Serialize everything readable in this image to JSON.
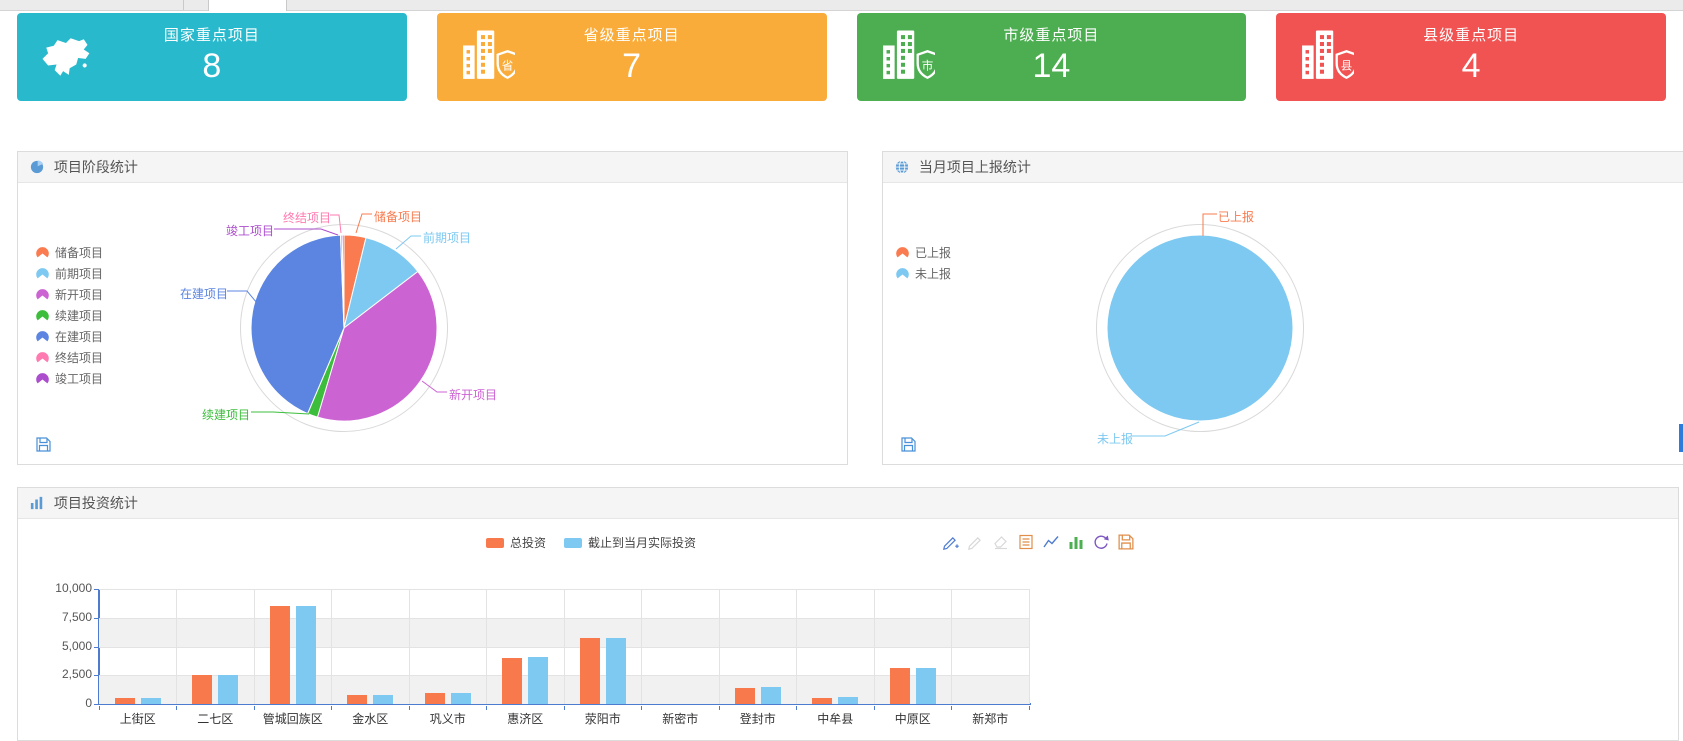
{
  "stat_cards": [
    {
      "label": "国家重点项目",
      "value": "8",
      "color": "#28B9CC",
      "icon": "china-map-icon",
      "badge": ""
    },
    {
      "label": "省级重点项目",
      "value": "7",
      "color": "#F9AC3A",
      "icon": "building-shield-icon",
      "badge": "省"
    },
    {
      "label": "市级重点项目",
      "value": "14",
      "color": "#4DAE51",
      "icon": "building-shield-icon",
      "badge": "市"
    },
    {
      "label": "县级重点项目",
      "value": "4",
      "color": "#F05352",
      "icon": "building-shield-icon",
      "badge": "县"
    }
  ],
  "panels": [
    {
      "title": "项目阶段统计",
      "icon": "pie-chart-icon"
    },
    {
      "title": "当月项目上报统计",
      "icon": "globe-icon"
    },
    {
      "title": "项目投资统计",
      "icon": "bar-chart-icon"
    }
  ],
  "toolbox": [
    {
      "name": "brush-icon",
      "color": "#4F7CD1"
    },
    {
      "name": "brush-disabled-icon",
      "color": "#D8D8D8"
    },
    {
      "name": "brush-clear-icon",
      "color": "#D8D8D8"
    },
    {
      "name": "data-view-icon",
      "color": "#E08E4A"
    },
    {
      "name": "magic-line-icon",
      "color": "#4F7CD1"
    },
    {
      "name": "magic-bar-icon",
      "color": "#4CAF50"
    },
    {
      "name": "restore-icon",
      "color": "#7E57C2"
    },
    {
      "name": "save-image-icon",
      "color": "#E08E4A"
    }
  ],
  "chart_data": [
    {
      "type": "pie",
      "title": "项目阶段统计",
      "legend_position": "left",
      "values_are": "visual_percent_estimate",
      "series": [
        {
          "name": "储备项目",
          "value": 3.8,
          "color": "#F97B4F"
        },
        {
          "name": "前期项目",
          "value": 10.8,
          "color": "#7EC9F1"
        },
        {
          "name": "新开项目",
          "value": 40,
          "color": "#CC63D3"
        },
        {
          "name": "续建项目",
          "value": 1.8,
          "color": "#3CBE3C"
        },
        {
          "name": "在建项目",
          "value": 43,
          "color": "#5B85E0"
        },
        {
          "name": "终结项目",
          "value": 0.3,
          "color": "#FF7AB0"
        },
        {
          "name": "竣工项目",
          "value": 0.3,
          "color": "#AC4DCD"
        }
      ]
    },
    {
      "type": "pie",
      "title": "当月项目上报统计",
      "legend_position": "left",
      "values_are": "visual_percent_estimate",
      "series": [
        {
          "name": "已上报",
          "value": 0,
          "color": "#F97B4F"
        },
        {
          "name": "未上报",
          "value": 100,
          "color": "#7EC9F1"
        }
      ]
    },
    {
      "type": "bar",
      "title": "项目投资统计",
      "legend_position": "top",
      "grid": true,
      "split_area": true,
      "categories": [
        "上街区",
        "二七区",
        "管城回族区",
        "金水区",
        "巩义市",
        "惠济区",
        "荥阳市",
        "新密市",
        "登封市",
        "中牟县",
        "中原区",
        "新郑市"
      ],
      "series": [
        {
          "name": "总投资",
          "color": "#F87A4C",
          "values": [
            550,
            2500,
            8520,
            750,
            950,
            4020,
            5700,
            0,
            1400,
            500,
            3100,
            0
          ]
        },
        {
          "name": "截止到当月实际投资",
          "color": "#7DC9F1",
          "values": [
            560,
            2480,
            8540,
            780,
            980,
            4050,
            5750,
            0,
            1470,
            580,
            3160,
            0
          ]
        }
      ],
      "ylim": [
        0,
        10000
      ],
      "yticks": [
        "0",
        "2,500",
        "5,000",
        "7,500",
        "10,000"
      ]
    }
  ]
}
